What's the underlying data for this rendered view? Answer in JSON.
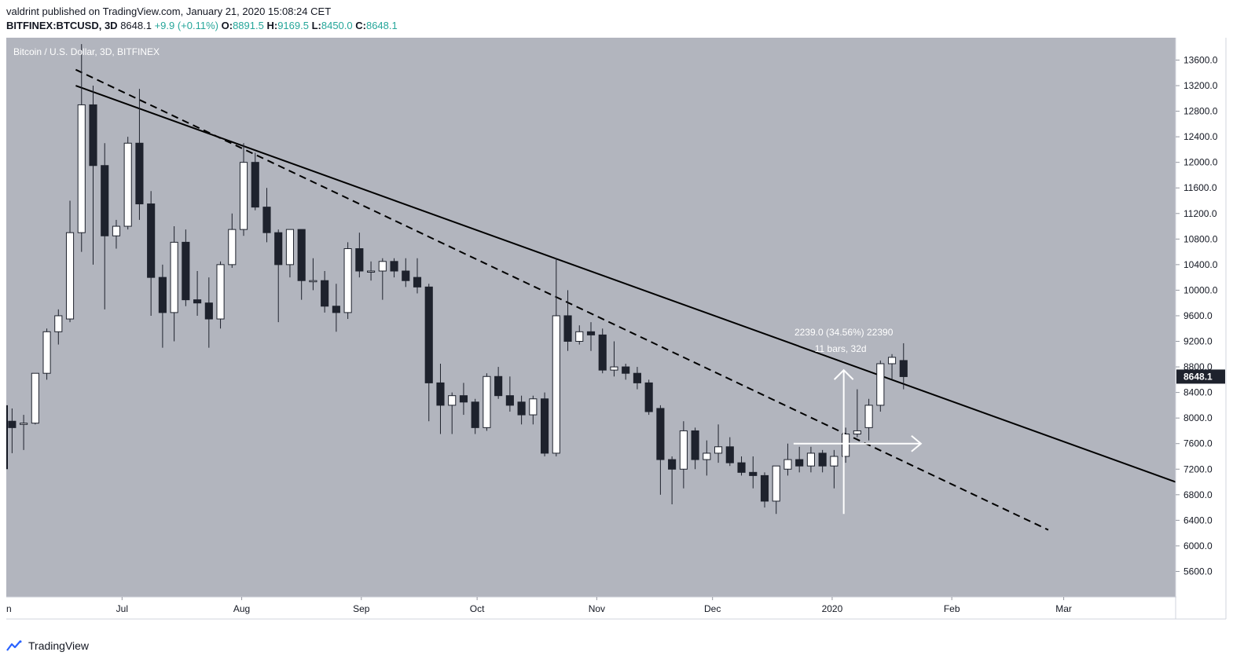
{
  "header": {
    "line1": "valdrint published on TradingView.com, January 21, 2020 15:08:24 CET",
    "symbol": "BITFINEX:BTCUSD, 3D",
    "last": "8648.1",
    "change": "+9.9 (+0.11%)",
    "o_label": "O:",
    "o_value": "8891.5",
    "h_label": "H:",
    "h_value": "9169.5",
    "l_label": "L:",
    "l_value": "8450.0",
    "c_label": "C:",
    "c_value": "8648.1"
  },
  "footer": {
    "brand": "TradingView",
    "icon": "tradingview-logo-icon"
  },
  "colors": {
    "plot_bg": "#b2b5be",
    "bull_body": "#ffffff",
    "bear_body": "#1e222d",
    "wick": "#1e222d",
    "trendline": "#000000",
    "measure": "#ffffff",
    "price_label_bg": "#1e222d"
  },
  "chart_data": {
    "type": "candlestick",
    "title": "Bitcoin / U.S. Dollar, 3D, BITFINEX",
    "y_ticks": [
      5600,
      6000,
      6400,
      6800,
      7200,
      7600,
      8000,
      8400,
      8800,
      9200,
      9600,
      10000,
      10400,
      10800,
      11200,
      11600,
      12000,
      12400,
      12800,
      13200,
      13600
    ],
    "ylim": [
      5200,
      13950
    ],
    "x_ticks": [
      {
        "label": "Jul",
        "date": "2019-07-01"
      },
      {
        "label": "Aug",
        "date": "2019-08-01"
      },
      {
        "label": "Sep",
        "date": "2019-09-01"
      },
      {
        "label": "Oct",
        "date": "2019-10-01"
      },
      {
        "label": "Nov",
        "date": "2019-11-01"
      },
      {
        "label": "Dec",
        "date": "2019-12-01"
      },
      {
        "label": "2020",
        "date": "2020-01-01"
      },
      {
        "label": "Feb",
        "date": "2020-02-01"
      },
      {
        "label": "Mar",
        "date": "2020-03-01"
      }
    ],
    "left_edge_label": "n",
    "xlim": [
      "2019-06-01",
      "2020-03-30"
    ],
    "last_price_label": "8648.1",
    "candles": [
      {
        "t": "2019-06-01",
        "o": 7950,
        "h": 8150,
        "l": 7450,
        "c": 7850
      },
      {
        "t": "2019-06-04",
        "o": 7900,
        "h": 8050,
        "l": 7500,
        "c": 7920
      },
      {
        "t": "2019-06-07",
        "o": 7920,
        "h": 8700,
        "l": 7900,
        "c": 8700
      },
      {
        "t": "2019-06-10",
        "o": 8700,
        "h": 9400,
        "l": 8600,
        "c": 9350
      },
      {
        "t": "2019-06-13",
        "o": 9350,
        "h": 9700,
        "l": 9150,
        "c": 9600
      },
      {
        "t": "2019-06-16",
        "o": 9550,
        "h": 11400,
        "l": 9500,
        "c": 10900
      },
      {
        "t": "2019-06-19",
        "o": 10900,
        "h": 13850,
        "l": 10600,
        "c": 12900
      },
      {
        "t": "2019-06-22",
        "o": 12900,
        "h": 13200,
        "l": 10400,
        "c": 11950
      },
      {
        "t": "2019-06-25",
        "o": 11950,
        "h": 12300,
        "l": 9700,
        "c": 10850
      },
      {
        "t": "2019-06-28",
        "o": 10850,
        "h": 11100,
        "l": 10650,
        "c": 11000
      },
      {
        "t": "2019-07-01",
        "o": 11000,
        "h": 12400,
        "l": 10950,
        "c": 12300
      },
      {
        "t": "2019-07-04",
        "o": 12300,
        "h": 13150,
        "l": 11100,
        "c": 11350
      },
      {
        "t": "2019-07-07",
        "o": 11350,
        "h": 11550,
        "l": 9600,
        "c": 10200
      },
      {
        "t": "2019-07-10",
        "o": 10200,
        "h": 10400,
        "l": 9100,
        "c": 9650
      },
      {
        "t": "2019-07-13",
        "o": 9650,
        "h": 11000,
        "l": 9200,
        "c": 10750
      },
      {
        "t": "2019-07-16",
        "o": 10750,
        "h": 10950,
        "l": 9750,
        "c": 9850
      },
      {
        "t": "2019-07-19",
        "o": 9850,
        "h": 10300,
        "l": 9600,
        "c": 9800
      },
      {
        "t": "2019-07-22",
        "o": 9800,
        "h": 10200,
        "l": 9100,
        "c": 9550
      },
      {
        "t": "2019-07-25",
        "o": 9550,
        "h": 10450,
        "l": 9400,
        "c": 10400
      },
      {
        "t": "2019-07-28",
        "o": 10400,
        "h": 11200,
        "l": 10350,
        "c": 10950
      },
      {
        "t": "2019-07-31",
        "o": 10950,
        "h": 12300,
        "l": 10850,
        "c": 12000
      },
      {
        "t": "2019-08-03",
        "o": 12000,
        "h": 12150,
        "l": 11250,
        "c": 11300
      },
      {
        "t": "2019-08-06",
        "o": 11300,
        "h": 11600,
        "l": 10750,
        "c": 10900
      },
      {
        "t": "2019-08-09",
        "o": 10900,
        "h": 10950,
        "l": 9500,
        "c": 10400
      },
      {
        "t": "2019-08-12",
        "o": 10400,
        "h": 10950,
        "l": 10200,
        "c": 10950
      },
      {
        "t": "2019-08-15",
        "o": 10950,
        "h": 10950,
        "l": 9850,
        "c": 10150
      },
      {
        "t": "2019-08-18",
        "o": 10150,
        "h": 10500,
        "l": 10000,
        "c": 10150
      },
      {
        "t": "2019-08-21",
        "o": 10150,
        "h": 10300,
        "l": 9650,
        "c": 9750
      },
      {
        "t": "2019-08-24",
        "o": 9750,
        "h": 10100,
        "l": 9350,
        "c": 9650
      },
      {
        "t": "2019-08-27",
        "o": 9650,
        "h": 10750,
        "l": 9550,
        "c": 10650
      },
      {
        "t": "2019-08-30",
        "o": 10650,
        "h": 10900,
        "l": 10200,
        "c": 10300
      },
      {
        "t": "2019-09-02",
        "o": 10300,
        "h": 10450,
        "l": 10150,
        "c": 10300
      },
      {
        "t": "2019-09-05",
        "o": 10300,
        "h": 10500,
        "l": 9850,
        "c": 10450
      },
      {
        "t": "2019-09-08",
        "o": 10450,
        "h": 10500,
        "l": 10200,
        "c": 10300
      },
      {
        "t": "2019-09-11",
        "o": 10300,
        "h": 10500,
        "l": 10050,
        "c": 10150
      },
      {
        "t": "2019-09-14",
        "o": 10200,
        "h": 10500,
        "l": 9950,
        "c": 10050
      },
      {
        "t": "2019-09-17",
        "o": 10050,
        "h": 10100,
        "l": 7950,
        "c": 8550
      },
      {
        "t": "2019-09-20",
        "o": 8550,
        "h": 8850,
        "l": 7750,
        "c": 8200
      },
      {
        "t": "2019-09-23",
        "o": 8200,
        "h": 8400,
        "l": 7750,
        "c": 8350
      },
      {
        "t": "2019-09-26",
        "o": 8350,
        "h": 8550,
        "l": 8050,
        "c": 8250
      },
      {
        "t": "2019-09-29",
        "o": 8250,
        "h": 8300,
        "l": 7750,
        "c": 7850
      },
      {
        "t": "2019-10-02",
        "o": 7850,
        "h": 8700,
        "l": 7800,
        "c": 8650
      },
      {
        "t": "2019-10-05",
        "o": 8650,
        "h": 8800,
        "l": 8300,
        "c": 8350
      },
      {
        "t": "2019-10-08",
        "o": 8350,
        "h": 8650,
        "l": 8100,
        "c": 8200
      },
      {
        "t": "2019-10-11",
        "o": 8250,
        "h": 8350,
        "l": 7900,
        "c": 8050
      },
      {
        "t": "2019-10-14",
        "o": 8050,
        "h": 8350,
        "l": 7900,
        "c": 8300
      },
      {
        "t": "2019-10-17",
        "o": 8300,
        "h": 8400,
        "l": 7400,
        "c": 7450
      },
      {
        "t": "2019-10-20",
        "o": 7450,
        "h": 10500,
        "l": 7400,
        "c": 9600
      },
      {
        "t": "2019-10-23",
        "o": 9600,
        "h": 10000,
        "l": 9050,
        "c": 9200
      },
      {
        "t": "2019-10-26",
        "o": 9200,
        "h": 9450,
        "l": 9150,
        "c": 9350
      },
      {
        "t": "2019-10-29",
        "o": 9350,
        "h": 9500,
        "l": 9050,
        "c": 9300
      },
      {
        "t": "2019-11-01",
        "o": 9300,
        "h": 9400,
        "l": 8700,
        "c": 8750
      },
      {
        "t": "2019-11-04",
        "o": 8750,
        "h": 9200,
        "l": 8650,
        "c": 8800
      },
      {
        "t": "2019-11-07",
        "o": 8800,
        "h": 8850,
        "l": 8600,
        "c": 8700
      },
      {
        "t": "2019-11-10",
        "o": 8700,
        "h": 8800,
        "l": 8450,
        "c": 8550
      },
      {
        "t": "2019-11-13",
        "o": 8550,
        "h": 8600,
        "l": 8050,
        "c": 8100
      },
      {
        "t": "2019-11-16",
        "o": 8150,
        "h": 8200,
        "l": 6800,
        "c": 7350
      },
      {
        "t": "2019-11-19",
        "o": 7350,
        "h": 7400,
        "l": 6650,
        "c": 7200
      },
      {
        "t": "2019-11-22",
        "o": 7200,
        "h": 7950,
        "l": 6900,
        "c": 7800
      },
      {
        "t": "2019-11-25",
        "o": 7800,
        "h": 7850,
        "l": 7200,
        "c": 7350
      },
      {
        "t": "2019-11-28",
        "o": 7350,
        "h": 7650,
        "l": 7100,
        "c": 7450
      },
      {
        "t": "2019-12-01",
        "o": 7450,
        "h": 7900,
        "l": 7300,
        "c": 7550
      },
      {
        "t": "2019-12-04",
        "o": 7550,
        "h": 7700,
        "l": 7250,
        "c": 7300
      },
      {
        "t": "2019-12-07",
        "o": 7300,
        "h": 7400,
        "l": 7100,
        "c": 7150
      },
      {
        "t": "2019-12-10",
        "o": 7150,
        "h": 7400,
        "l": 6900,
        "c": 7100
      },
      {
        "t": "2019-12-13",
        "o": 7100,
        "h": 7150,
        "l": 6600,
        "c": 6700
      },
      {
        "t": "2019-12-16",
        "o": 6700,
        "h": 7250,
        "l": 6500,
        "c": 7250
      },
      {
        "t": "2019-12-19",
        "o": 7200,
        "h": 7600,
        "l": 7100,
        "c": 7350
      },
      {
        "t": "2019-12-22",
        "o": 7350,
        "h": 7550,
        "l": 7150,
        "c": 7250
      },
      {
        "t": "2019-12-25",
        "o": 7250,
        "h": 7550,
        "l": 7150,
        "c": 7450
      },
      {
        "t": "2019-12-28",
        "o": 7450,
        "h": 7500,
        "l": 7150,
        "c": 7250
      },
      {
        "t": "2019-12-31",
        "o": 7250,
        "h": 7500,
        "l": 6900,
        "c": 7400
      },
      {
        "t": "2020-01-03",
        "o": 7400,
        "h": 7850,
        "l": 7300,
        "c": 7750
      },
      {
        "t": "2020-01-06",
        "o": 7750,
        "h": 8450,
        "l": 7700,
        "c": 7800
      },
      {
        "t": "2020-01-09",
        "o": 7850,
        "h": 8300,
        "l": 7650,
        "c": 8200
      },
      {
        "t": "2020-01-12",
        "o": 8200,
        "h": 8900,
        "l": 8100,
        "c": 8850
      },
      {
        "t": "2020-01-15",
        "o": 8850,
        "h": 9000,
        "l": 8600,
        "c": 8950
      },
      {
        "t": "2020-01-18",
        "o": 8900,
        "h": 9170,
        "l": 8450,
        "c": 8648
      }
    ],
    "trendlines": [
      {
        "style": "solid",
        "from": {
          "t": "2019-06-19",
          "p": 13200
        },
        "to": {
          "t": "2020-03-30",
          "p": 7000
        }
      },
      {
        "style": "dashed",
        "from": {
          "t": "2019-06-19",
          "p": 13450
        },
        "to": {
          "t": "2020-02-26",
          "p": 6250
        }
      }
    ],
    "measure": {
      "label_line1": "2239.0 (34.56%) 22390",
      "label_line2": "11 bars, 32d",
      "from": {
        "t": "2019-12-22",
        "p": 7600
      },
      "to": {
        "t": "2020-01-24",
        "p": 7600
      },
      "vertical_at": "2020-01-04",
      "vertical_from": 6500,
      "vertical_to": 8750
    }
  }
}
